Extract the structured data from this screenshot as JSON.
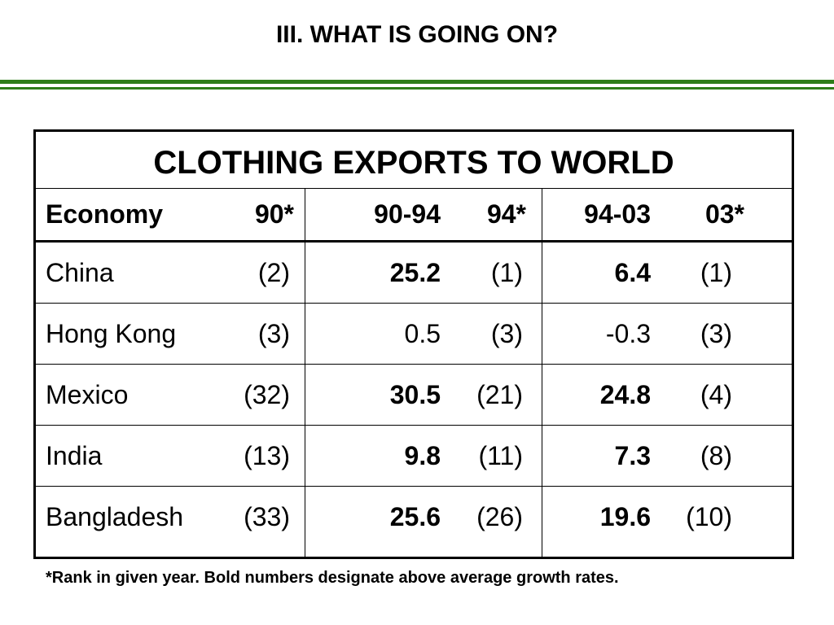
{
  "slide_title": "III. WHAT IS GOING ON?",
  "table": {
    "title": "CLOTHING EXPORTS TO WORLD",
    "headers": {
      "economy": "Economy",
      "rank_90": "90*",
      "growth_90_94": "90-94",
      "rank_94": "94*",
      "growth_94_03": "94-03",
      "rank_03": "03*"
    },
    "rows": [
      {
        "economy": "China",
        "rank_90": "(2)",
        "growth_90_94": "25.2",
        "rank_94": "(1)",
        "growth_94_03": "6.4",
        "rank_03": "(1)",
        "bold_90_94": true,
        "bold_94_03": true
      },
      {
        "economy": "Hong Kong",
        "rank_90": "(3)",
        "growth_90_94": "0.5",
        "rank_94": "(3)",
        "growth_94_03": "-0.3",
        "rank_03": "(3)",
        "bold_90_94": false,
        "bold_94_03": false
      },
      {
        "economy": "Mexico",
        "rank_90": "(32)",
        "growth_90_94": "30.5",
        "rank_94": "(21)",
        "growth_94_03": "24.8",
        "rank_03": "(4)",
        "bold_90_94": true,
        "bold_94_03": true
      },
      {
        "economy": "India",
        "rank_90": "(13)",
        "growth_90_94": "9.8",
        "rank_94": "(11)",
        "growth_94_03": "7.3",
        "rank_03": "(8)",
        "bold_90_94": true,
        "bold_94_03": true
      },
      {
        "economy": "Bangladesh",
        "rank_90": "(33)",
        "growth_90_94": "25.6",
        "rank_94": "(26)",
        "growth_94_03": "19.6",
        "rank_03": "(10)",
        "bold_90_94": true,
        "bold_94_03": true
      }
    ]
  },
  "footnote": "*Rank in given year.  Bold numbers designate above average growth rates.",
  "colors": {
    "accent_rule": "#2e7d1a"
  }
}
